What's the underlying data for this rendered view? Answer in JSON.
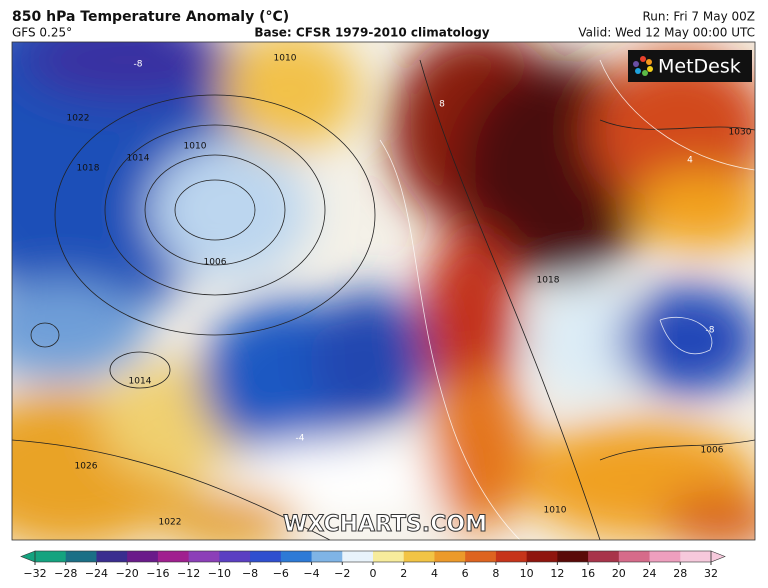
{
  "header": {
    "title": "850 hPa Temperature Anomaly (°C)",
    "model": "GFS 0.25°",
    "base": "Base: CFSR 1979-2010 climatology",
    "run": "Run: Fri 7 May 00Z",
    "valid": "Valid: Wed 12 May 00:00 UTC"
  },
  "logo": "MetDesk",
  "watermark": "WXCHARTS.COM",
  "isobar_labels": [
    "1010",
    "1022",
    "1018",
    "1014",
    "1010",
    "1006",
    "1014",
    "1026",
    "1022",
    "1018",
    "1030",
    "1006",
    "1010"
  ],
  "anomaly_labels": [
    "-8",
    "-8",
    "8",
    "-4",
    "4"
  ],
  "colorbar": {
    "ticks": [
      "−32",
      "−28",
      "−24",
      "−20",
      "−16",
      "−12",
      "−10",
      "−8",
      "−6",
      "−4",
      "−2",
      "0",
      "2",
      "4",
      "6",
      "8",
      "10",
      "12",
      "16",
      "20",
      "24",
      "28",
      "32"
    ],
    "colors": [
      "#14a37f",
      "#1b6f86",
      "#3a2d8f",
      "#6a1b8a",
      "#a0208f",
      "#8c3fb8",
      "#5b3fc2",
      "#2f4fcf",
      "#2d7ad6",
      "#7fb4e6",
      "#e9f3fb",
      "#f7ec9c",
      "#f2c445",
      "#ec9a2a",
      "#de6420",
      "#c6341a",
      "#8f150e",
      "#5a0a08",
      "#a8344a",
      "#d66b8a",
      "#ee9fbe",
      "#f6c9dc"
    ]
  }
}
